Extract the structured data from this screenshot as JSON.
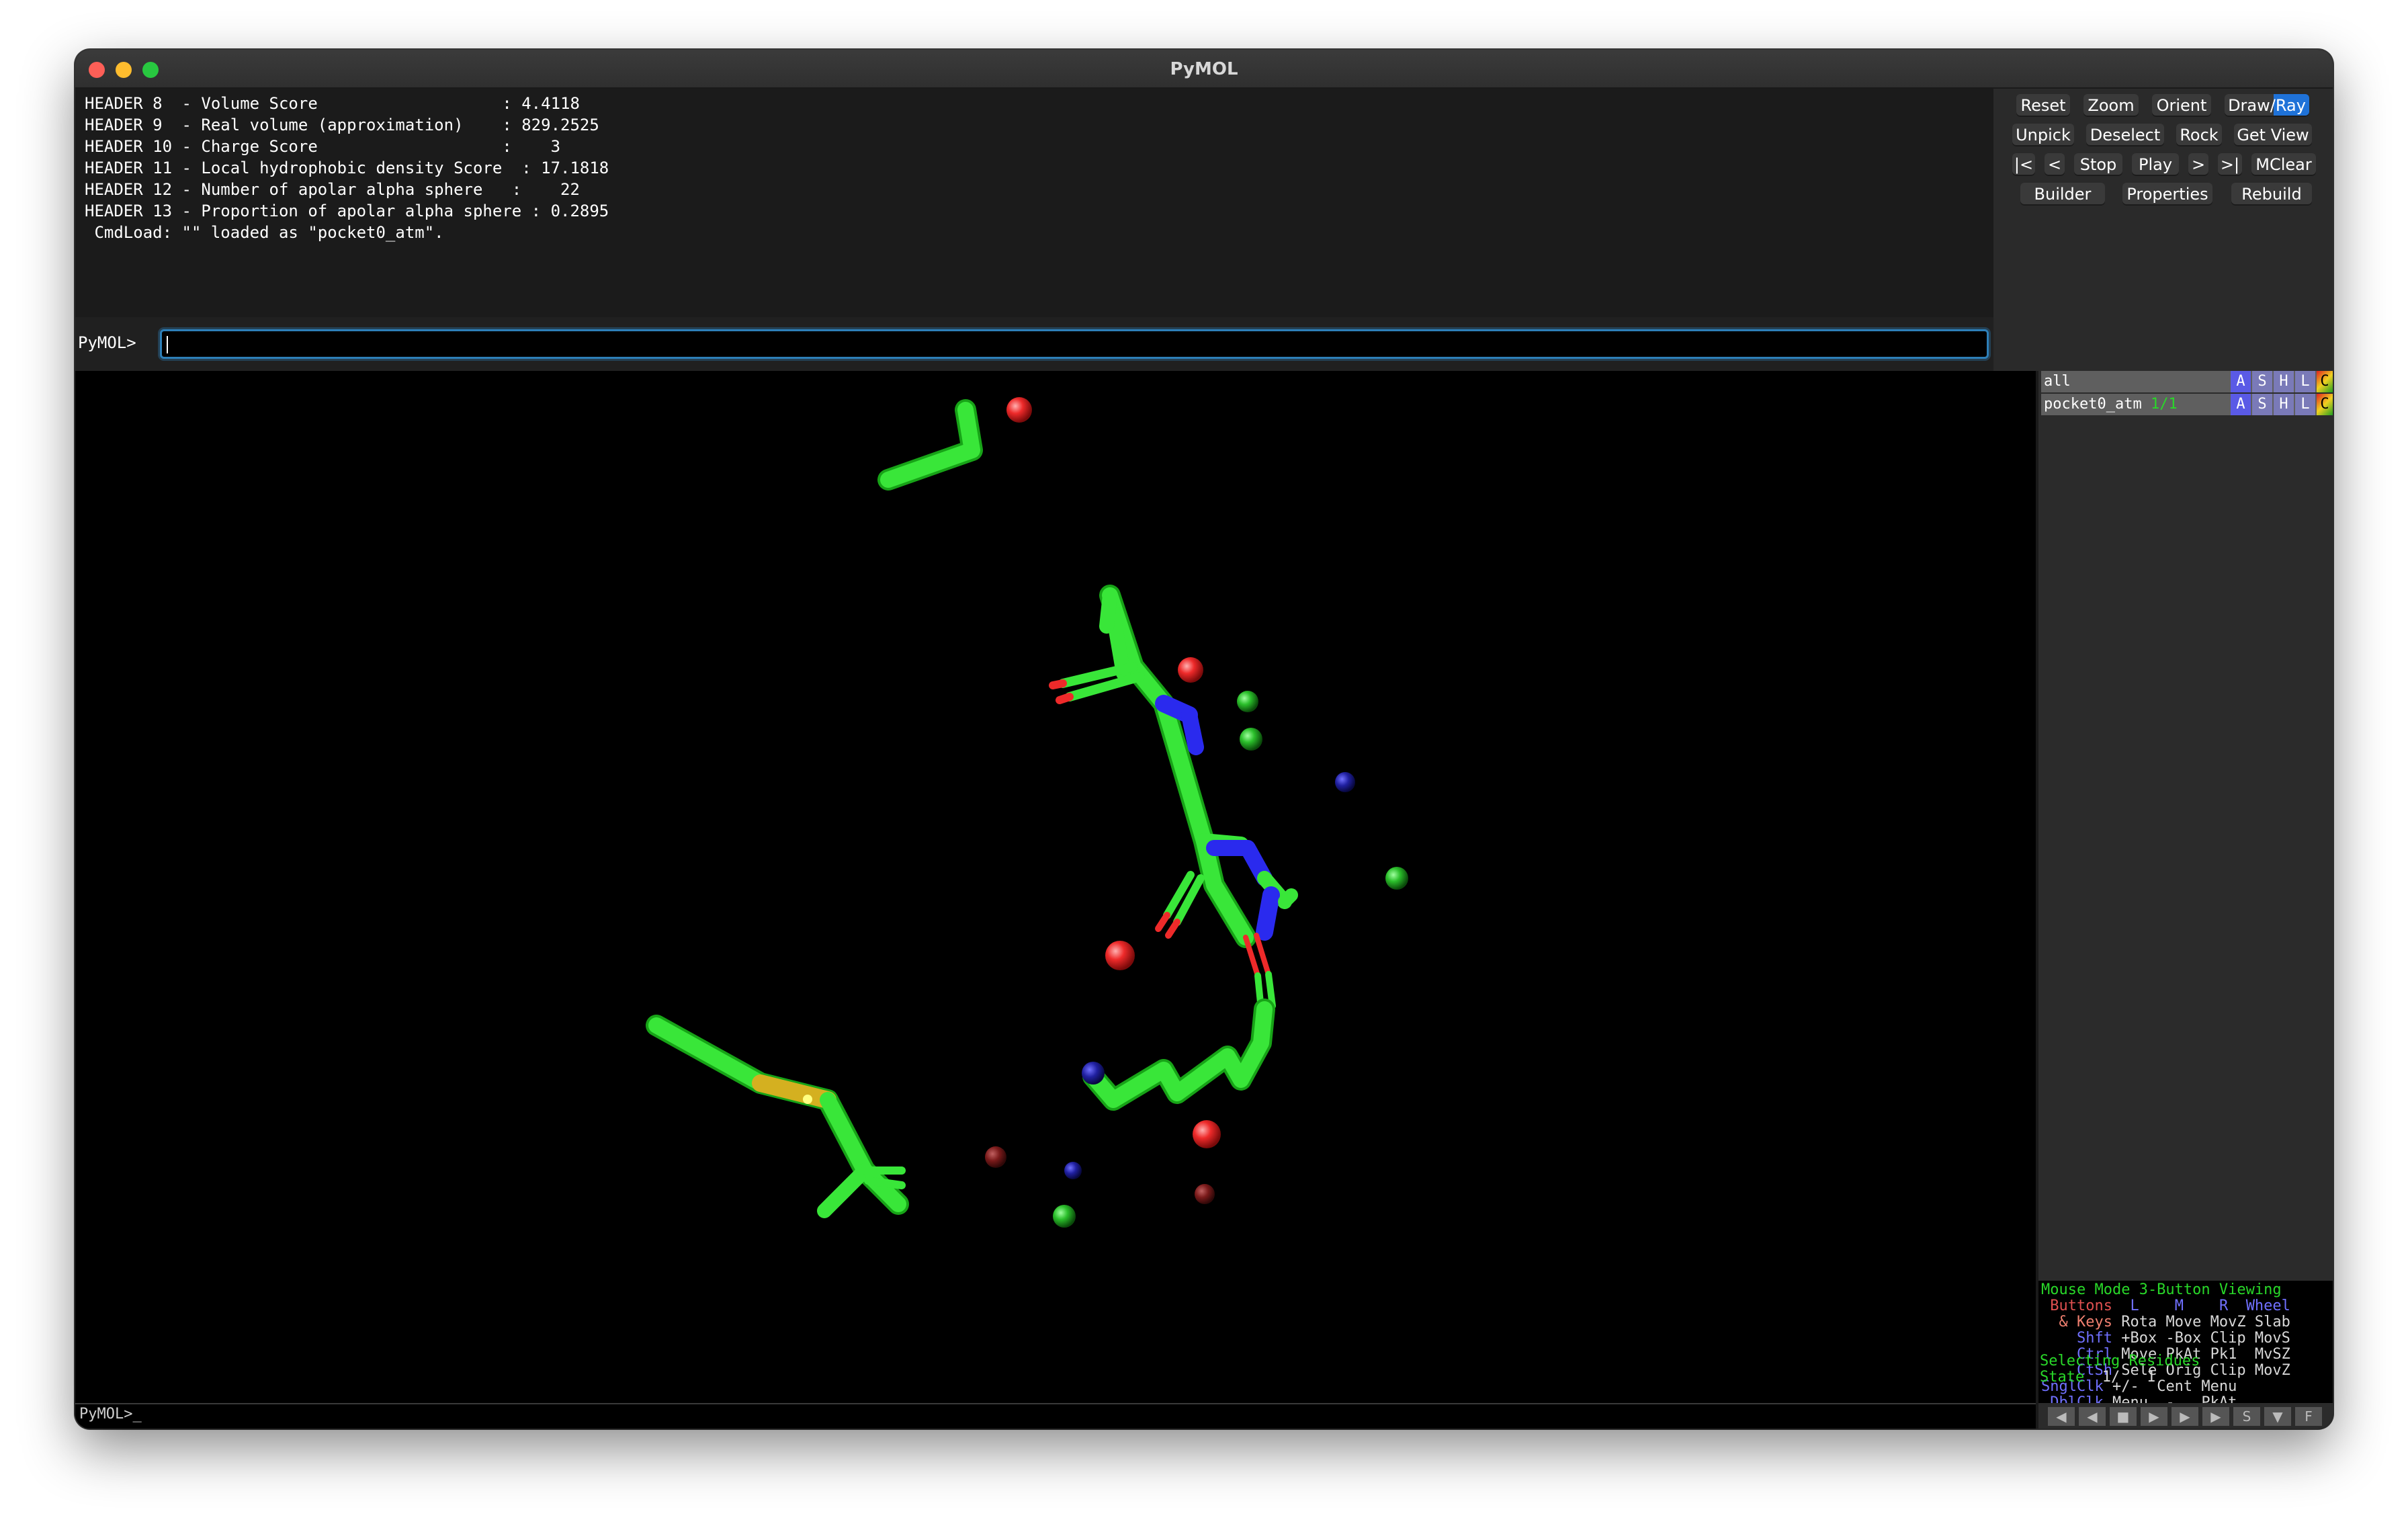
{
  "window": {
    "title": "PyMOL"
  },
  "log": {
    "lines": [
      "HEADER 8  - Volume Score                   : 4.4118",
      "HEADER 9  - Real volume (approximation)    : 829.2525",
      "HEADER 10 - Charge Score                   :    3",
      "HEADER 11 - Local hydrophobic density Score  : 17.1818",
      "HEADER 12 - Number of apolar alpha sphere   :    22",
      "HEADER 13 - Proportion of apolar alpha sphere : 0.2895",
      " CmdLoad: \"\" loaded as \"pocket0_atm\"."
    ]
  },
  "command": {
    "prompt": "PyMOL>",
    "value": ""
  },
  "buttons": {
    "row1": [
      "Reset",
      "Zoom",
      "Orient",
      "Draw/Ray"
    ],
    "row2": [
      "Unpick",
      "Deselect",
      "Rock",
      "Get View"
    ],
    "row3": [
      "|<",
      "<",
      "Stop",
      "Play",
      ">",
      ">|",
      "MClear"
    ],
    "row4": [
      "Builder",
      "Properties",
      "Rebuild"
    ]
  },
  "objects": [
    {
      "name": "all",
      "state": "",
      "actions": [
        "A",
        "S",
        "H",
        "L",
        "C"
      ]
    },
    {
      "name": "pocket0_atm",
      "state": "1/1",
      "actions": [
        "A",
        "S",
        "H",
        "L",
        "C"
      ]
    }
  ],
  "mouse_panel": {
    "title": "Mouse Mode 3-Button Viewing",
    "header": {
      "label": " Buttons",
      "cols": [
        "L",
        "M",
        "R",
        "Wheel"
      ]
    },
    "rows": [
      {
        "key": "  & Keys",
        "vals": "Rota Move MovZ Slab"
      },
      {
        "key": "    Shft",
        "vals": "+Box -Box Clip MovS"
      },
      {
        "key": "    Ctrl",
        "vals": "Move PkAt Pk1  MvSZ"
      },
      {
        "key": "    CtSh",
        "vals": "Sele Orig Clip MovZ"
      },
      {
        "key": "SnglClk",
        "vals": "+/-  Cent Menu"
      },
      {
        "key": " DblClk",
        "vals": "Menu  -   PkAt"
      }
    ],
    "selecting": "Selecting Residues",
    "state_label": "State",
    "state_value": "1/   1"
  },
  "status": {
    "prompt": "PyMOL>_"
  },
  "movie_controls": [
    "◀",
    "◀",
    "■",
    "▶",
    "▶",
    "▶",
    "S",
    "▼",
    "F"
  ],
  "colors": {
    "carbon": "#33e633",
    "nitrogen": "#2a2aee",
    "oxygen": "#ee2a2a",
    "sulfur": "#d4b020",
    "accent": "#2d7fb8"
  }
}
